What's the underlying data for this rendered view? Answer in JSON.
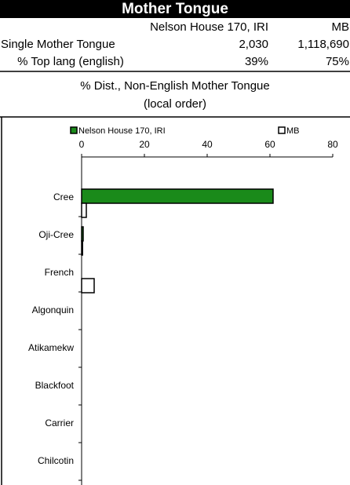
{
  "header": {
    "title": "Mother Tongue",
    "columns": [
      "Nelson House 170, IRI",
      "MB"
    ],
    "rows": [
      [
        "Single Mother Tongue",
        "2,030",
        "1,118,690"
      ],
      [
        "% Top lang (english)",
        "39%",
        "75%"
      ]
    ]
  },
  "chart_data": {
    "type": "hbar",
    "title": "% Dist., Non-English Mother Tongue",
    "subtitle": "(local order)",
    "categories": [
      "Cree",
      "Oji-Cree",
      "French",
      "Algonquin",
      "Atikamekw",
      "Blackfoot",
      "Carrier",
      "Chilcotin"
    ],
    "series": [
      {
        "name": "Nelson House 170, IRI",
        "color": "#1a8a1a",
        "values": [
          61,
          0.5,
          0,
          0,
          0,
          0,
          0,
          0
        ]
      },
      {
        "name": "MB",
        "color": "#ffffff",
        "values": [
          1.5,
          0.3,
          4,
          0,
          0,
          0,
          0,
          0
        ]
      }
    ],
    "xlim": [
      0,
      80
    ],
    "xticks": [
      0,
      20,
      40,
      60,
      80
    ]
  }
}
